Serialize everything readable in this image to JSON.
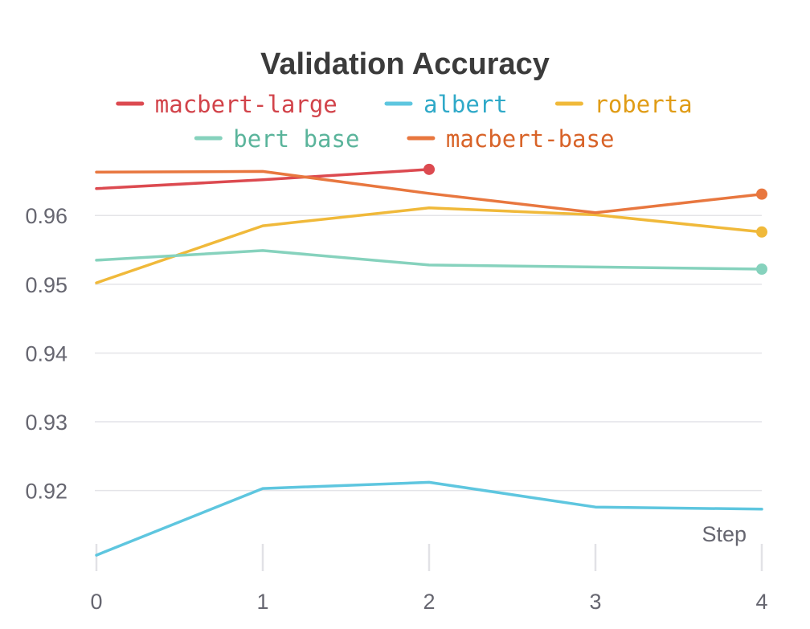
{
  "chart_data": {
    "type": "line",
    "title": "Validation Accuracy",
    "xlabel": "Step",
    "ylabel": "",
    "x": [
      0,
      1,
      2,
      3,
      4
    ],
    "x_ticks": [
      "0",
      "1",
      "2",
      "3",
      "4"
    ],
    "y_ticks": [
      "0.92",
      "0.93",
      "0.94",
      "0.95",
      "0.96"
    ],
    "y_tick_values": [
      0.92,
      0.93,
      0.94,
      0.95,
      0.96
    ],
    "xlim": [
      0,
      4
    ],
    "ylim": [
      0.9105,
      0.9668
    ],
    "grid": true,
    "legend_position": "top",
    "series": [
      {
        "name": "macbert-large",
        "color": "#dc4a50",
        "text_color": "#d2434a",
        "x": [
          0,
          1,
          2
        ],
        "values": [
          0.9639,
          0.9652,
          0.9667
        ]
      },
      {
        "name": "albert",
        "color": "#5ec6df",
        "text_color": "#2fa9c8",
        "x": [
          0,
          1,
          2,
          3,
          4
        ],
        "values": [
          0.9106,
          0.9203,
          0.9212,
          0.9176,
          0.9173
        ]
      },
      {
        "name": "roberta",
        "color": "#f0b93a",
        "text_color": "#e09c16",
        "x": [
          0,
          1,
          2,
          3,
          4
        ],
        "values": [
          0.9502,
          0.9585,
          0.9611,
          0.9601,
          0.9576
        ]
      },
      {
        "name": "bert base",
        "color": "#86d2bd",
        "text_color": "#5ab49b",
        "x": [
          0,
          1,
          2,
          3,
          4
        ],
        "values": [
          0.9535,
          0.9549,
          0.9528,
          0.9525,
          0.9522
        ]
      },
      {
        "name": "macbert-base",
        "color": "#e8773f",
        "text_color": "#d86328",
        "x": [
          0,
          1,
          2,
          3,
          4
        ],
        "values": [
          0.9663,
          0.9664,
          0.9632,
          0.9604,
          0.9631
        ]
      }
    ]
  }
}
